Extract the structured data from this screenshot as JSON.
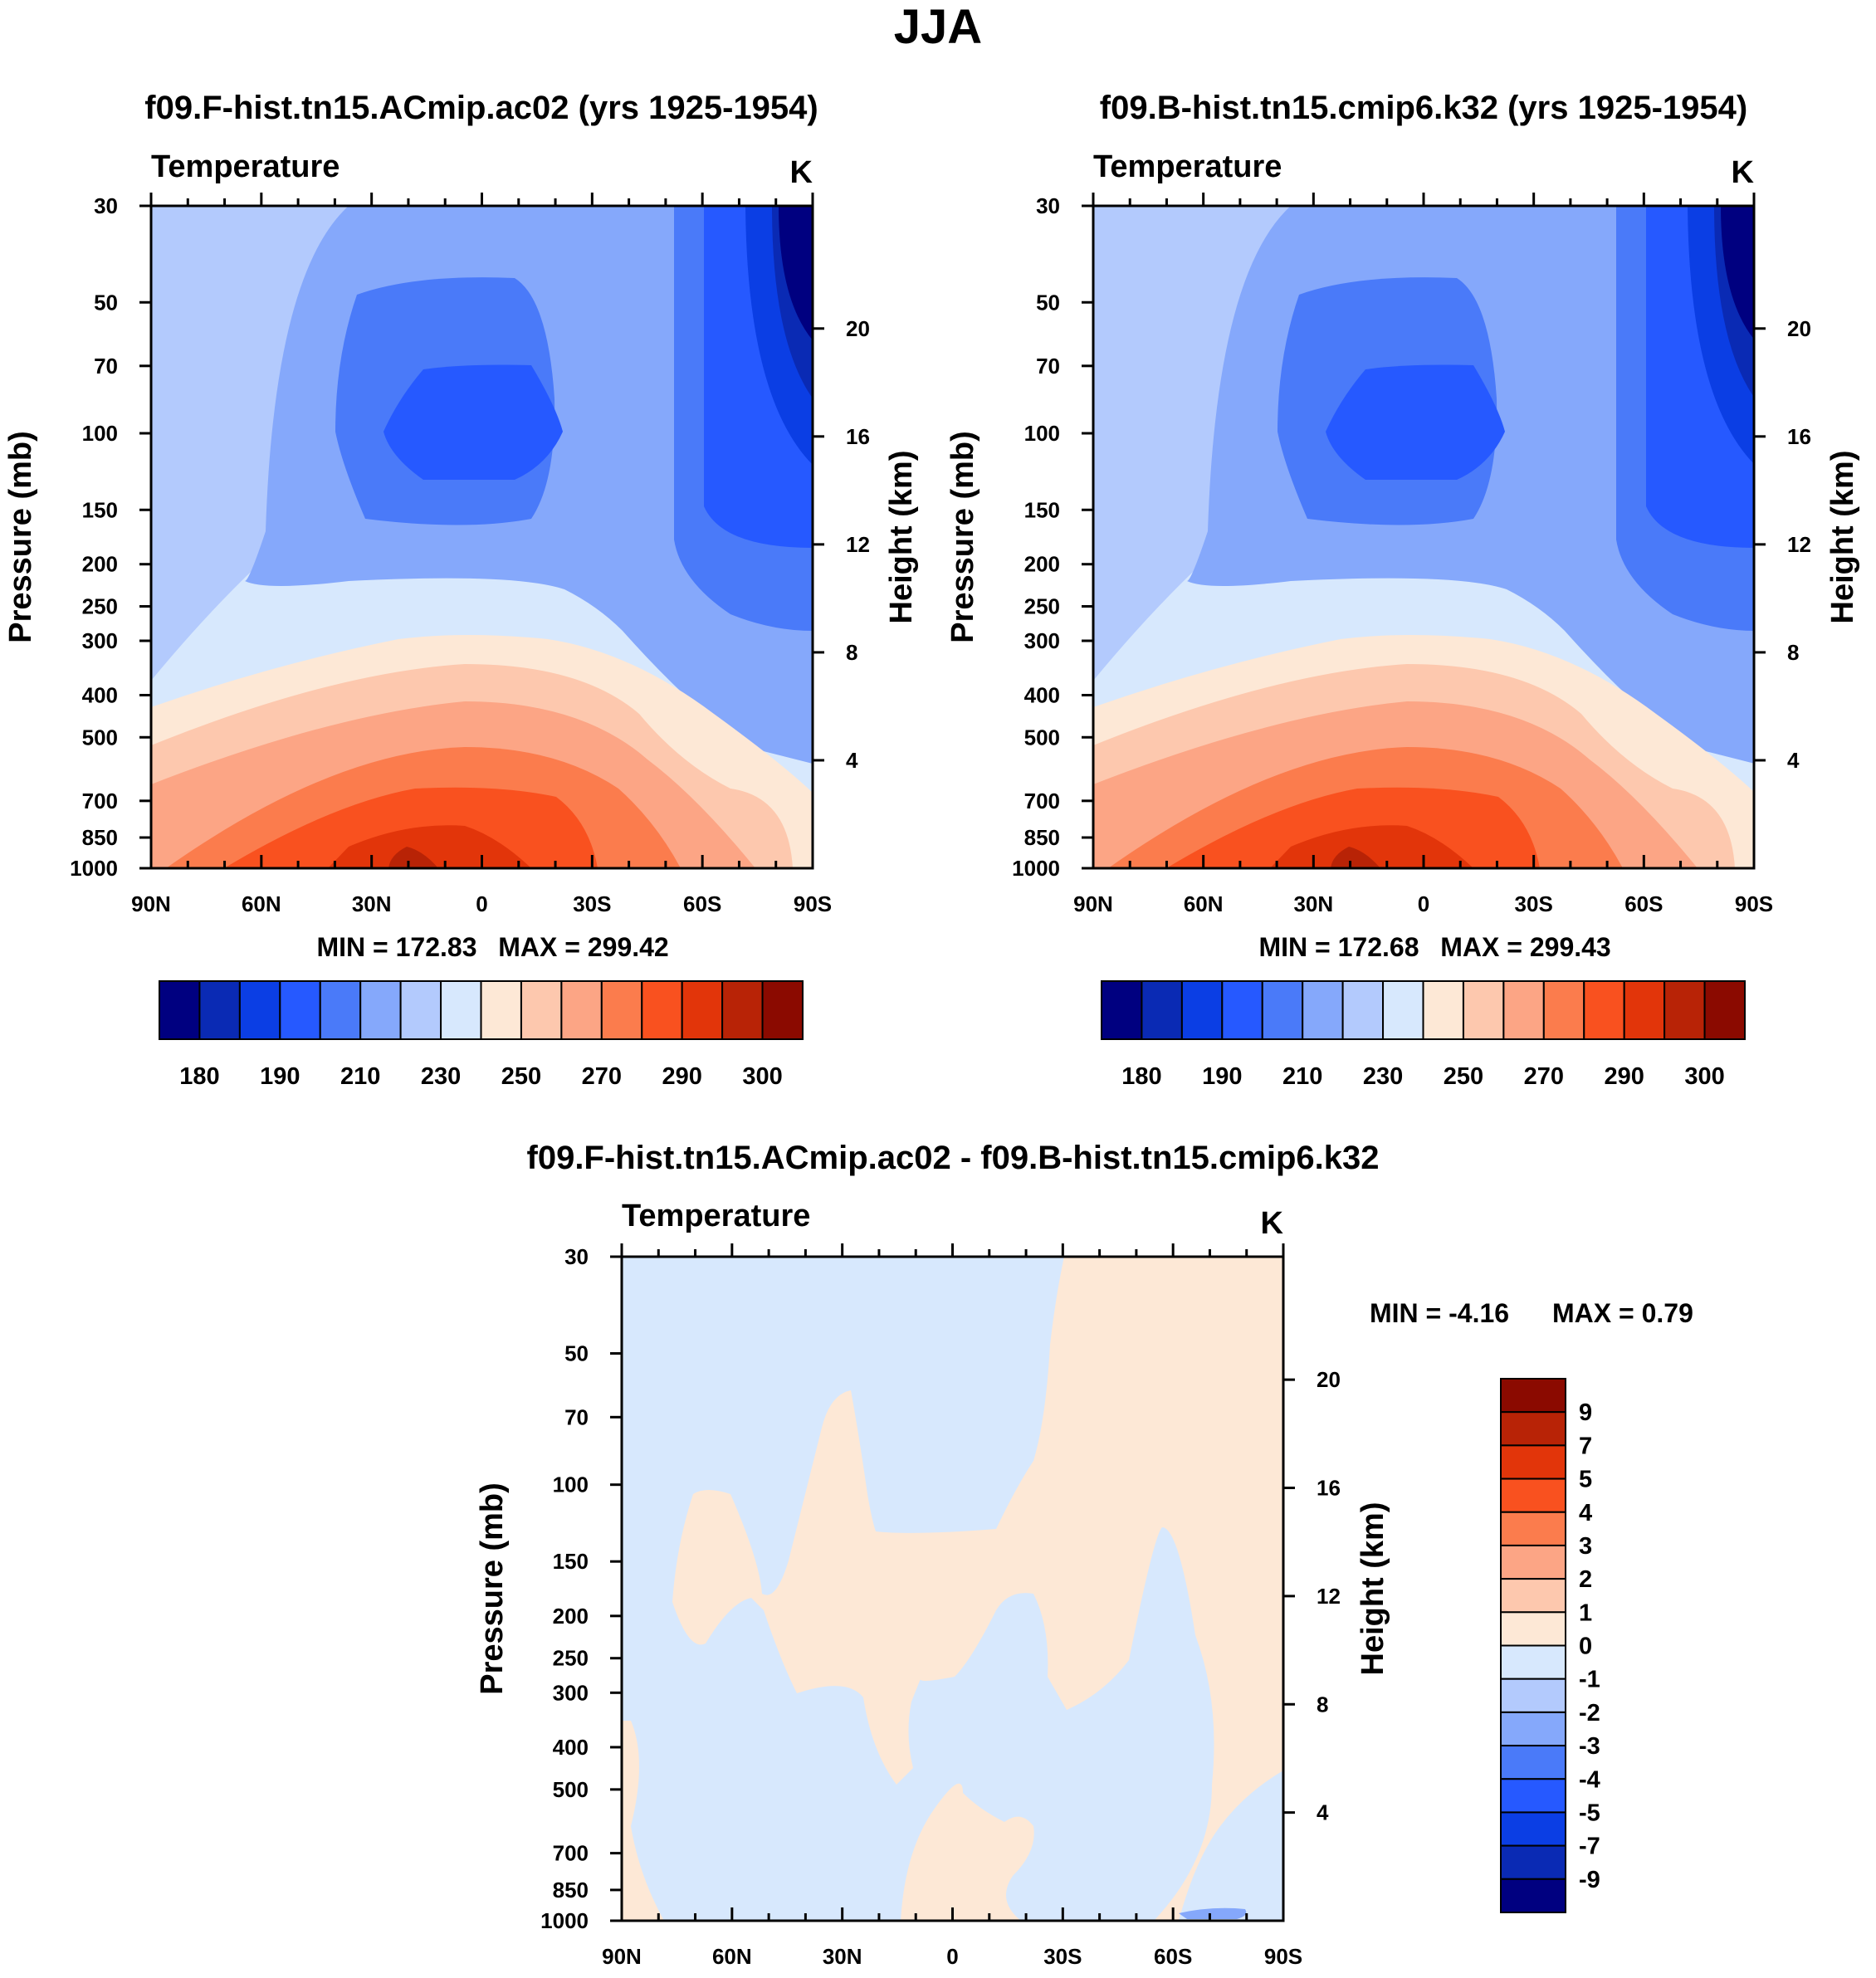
{
  "figure_title": "JJA",
  "chart_data": [
    {
      "type": "contour",
      "title": "f09.F-hist.tn15.ACmip.ac02 (yrs 1925-1954)",
      "variable": "Temperature",
      "units": "K",
      "xlabel": "",
      "ylabel": "Pressure (mb)",
      "y2label": "Height (km)",
      "x_ticks": [
        "90N",
        "60N",
        "30N",
        "0",
        "30S",
        "60S",
        "90S"
      ],
      "x_range": [
        90,
        -90
      ],
      "pressure_ticks": [
        30,
        50,
        70,
        100,
        150,
        200,
        250,
        300,
        400,
        500,
        700,
        850,
        1000
      ],
      "height_ticks": [
        4,
        8,
        12,
        16,
        20
      ],
      "min_label": "MIN = 172.83",
      "max_label": "MAX = 299.42",
      "min": 172.83,
      "max": 299.42,
      "colorbar_labels": [
        "180",
        "190",
        "210",
        "230",
        "250",
        "270",
        "290",
        "300"
      ]
    },
    {
      "type": "contour",
      "title": "f09.B-hist.tn15.cmip6.k32 (yrs 1925-1954)",
      "variable": "Temperature",
      "units": "K",
      "xlabel": "",
      "ylabel": "Pressure (mb)",
      "y2label": "Height (km)",
      "x_ticks": [
        "90N",
        "60N",
        "30N",
        "0",
        "30S",
        "60S",
        "90S"
      ],
      "x_range": [
        90,
        -90
      ],
      "pressure_ticks": [
        30,
        50,
        70,
        100,
        150,
        200,
        250,
        300,
        400,
        500,
        700,
        850,
        1000
      ],
      "height_ticks": [
        4,
        8,
        12,
        16,
        20
      ],
      "min_label": "MIN = 172.68",
      "max_label": "MAX = 299.43",
      "min": 172.68,
      "max": 299.43,
      "colorbar_labels": [
        "180",
        "190",
        "210",
        "230",
        "250",
        "270",
        "290",
        "300"
      ]
    },
    {
      "type": "contour",
      "title": "f09.F-hist.tn15.ACmip.ac02 - f09.B-hist.tn15.cmip6.k32",
      "variable": "Temperature",
      "units": "K",
      "xlabel": "",
      "ylabel": "Pressure (mb)",
      "y2label": "Height (km)",
      "x_ticks": [
        "90N",
        "60N",
        "30N",
        "0",
        "30S",
        "60S",
        "90S"
      ],
      "x_range": [
        90,
        -90
      ],
      "pressure_ticks": [
        30,
        50,
        70,
        100,
        150,
        200,
        250,
        300,
        400,
        500,
        700,
        850,
        1000
      ],
      "height_ticks": [
        4,
        8,
        12,
        16,
        20
      ],
      "min_label": "MIN =  -4.16",
      "max_label": "MAX =   0.79",
      "min": -4.16,
      "max": 0.79,
      "colorbar_labels": [
        "9",
        "7",
        "5",
        "4",
        "3",
        "2",
        "1",
        "0",
        "-1",
        "-2",
        "-3",
        "-4",
        "-5",
        "-7",
        "-9"
      ]
    }
  ],
  "palette": [
    "#000080",
    "#0a2ab4",
    "#0b3ee4",
    "#2659ff",
    "#4a7af9",
    "#85a8fb",
    "#b3cafd",
    "#d7e8fd",
    "#fde8d6",
    "#fdc8ae",
    "#fca585",
    "#fb7c4d",
    "#f9511f",
    "#e2350a",
    "#b82306",
    "#8b0a00"
  ]
}
